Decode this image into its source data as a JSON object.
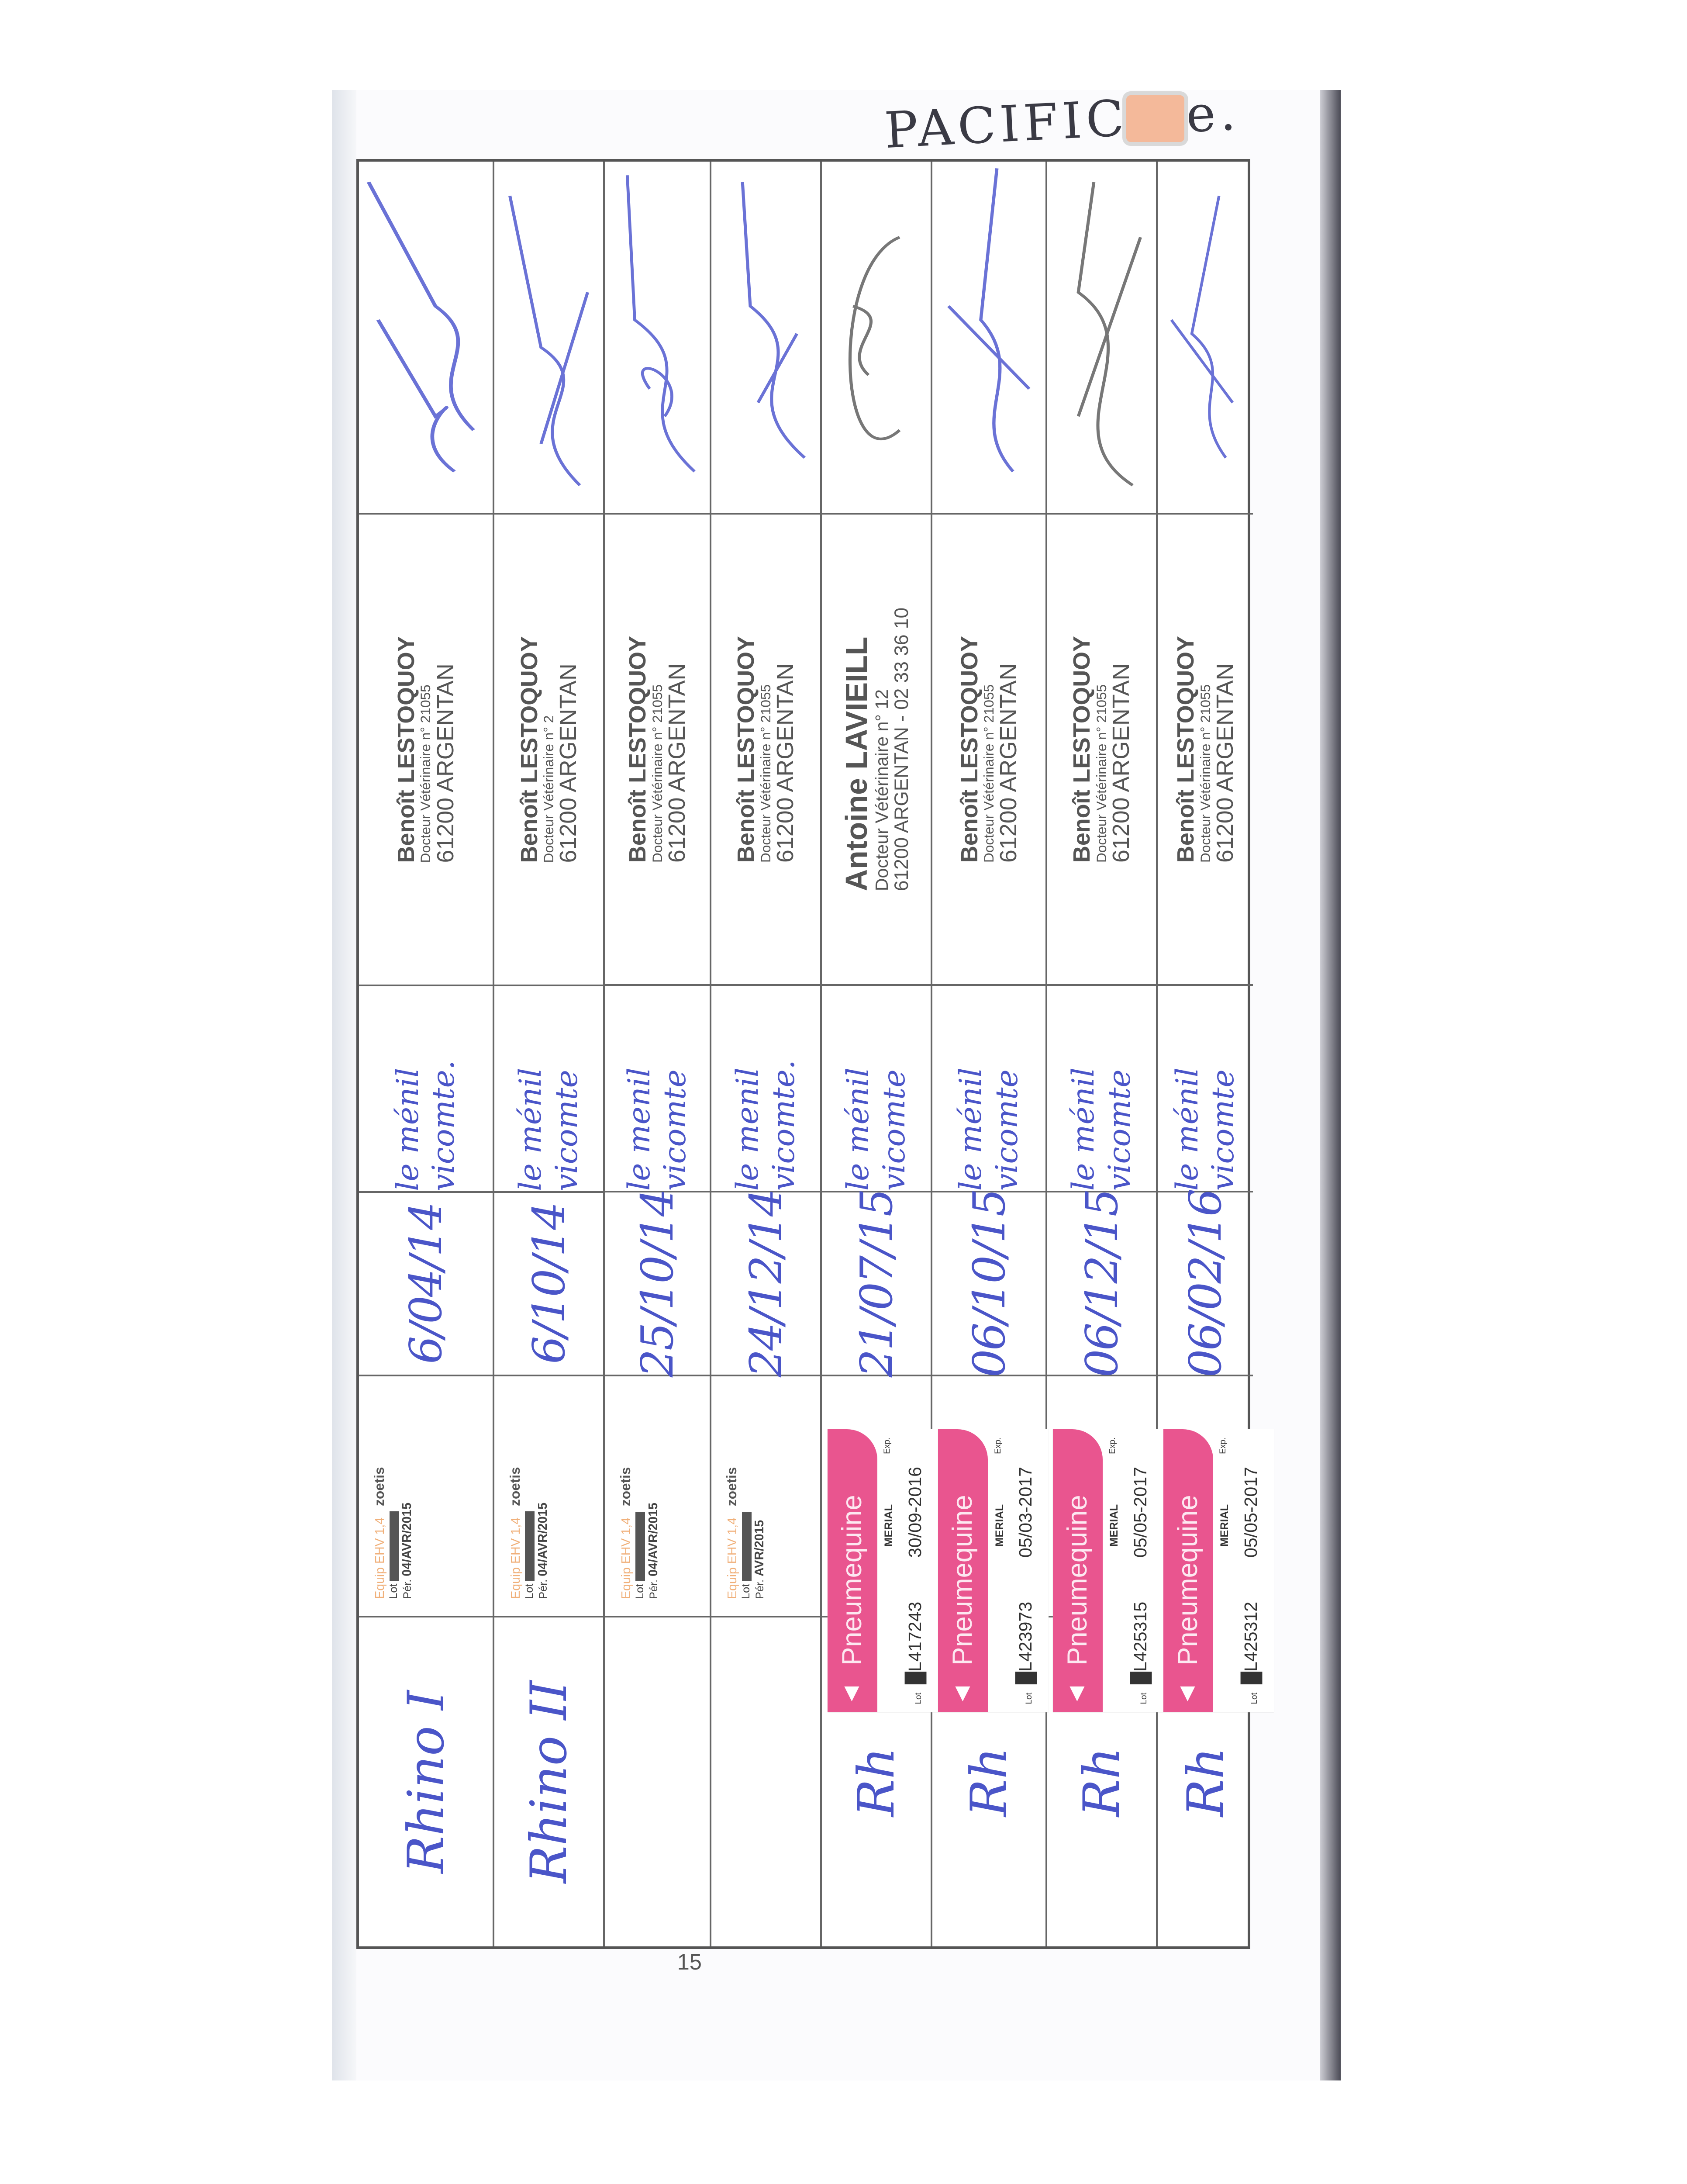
{
  "header_note": "PACIFIC...e.",
  "page_number": "15",
  "colors": {
    "ink_blue": "#4a55c8",
    "pneumequine_pink": "#e9558f",
    "stamp_gray": "#555555"
  },
  "rows": [
    {
      "disease": "Rhino I",
      "vaccine": {
        "type": "zoetis",
        "brand": "Equip EHV 1,4",
        "maker": "zoetis",
        "lot_label": "Lot",
        "per_label": "Pér.",
        "per": "04/AVR/2015"
      },
      "date": "6/04/14",
      "place": "le ménil vicomte.",
      "vet": {
        "name": "Benoît LESTOQUOY",
        "title": "Docteur Vétérinaire n° 21055",
        "city": "61200 ARGENTAN"
      }
    },
    {
      "disease": "Rhino II",
      "vaccine": {
        "type": "zoetis",
        "brand": "Equip EHV 1,4",
        "maker": "zoetis",
        "lot_label": "Lot",
        "per_label": "Pér.",
        "per": "04/AVR/2015"
      },
      "date": "6/10/14",
      "place": "le ménil vicomte",
      "vet": {
        "name": "Benoît LESTOQUOY",
        "title": "Docteur Vétérinaire n° 2",
        "city": "61200 ARGENTAN"
      }
    },
    {
      "disease": "",
      "vaccine": {
        "type": "zoetis",
        "brand": "Equip EHV 1,4",
        "maker": "zoetis",
        "lot_label": "Lot",
        "per_label": "Pér.",
        "per": "04/AVR/2015"
      },
      "date": "25/10/14",
      "place": "le menil vicomte",
      "vet": {
        "name": "Benoît LESTOQUOY",
        "title": "Docteur Vétérinaire n° 21055",
        "city": "61200 ARGENTAN"
      }
    },
    {
      "disease": "",
      "vaccine": {
        "type": "zoetis",
        "brand": "Equip EHV 1,4",
        "maker": "zoetis",
        "lot_label": "Lot",
        "per_label": "Pér.",
        "per": "AVR/2015"
      },
      "date": "24/12/14",
      "place": "le menil vicomte.",
      "vet": {
        "name": "Benoît LESTOQUOY",
        "title": "Docteur Vétérinaire n° 21055",
        "city": "61200 ARGENTAN"
      }
    },
    {
      "disease": "Rh",
      "vaccine": {
        "type": "pneumequine",
        "brand": "Pneumequine",
        "maker": "MERIAL",
        "lot_label": "Lot",
        "lot": "L417243",
        "exp_label": "Exp.",
        "exp": "30/09-2016"
      },
      "date": "21/07/15",
      "place": "le ménil vicomte",
      "vet": {
        "name": "Antoine LAVIEILL",
        "title": "Docteur Vétérinaire n° 12",
        "city": "61200 ARGENTAN - 02 33 36 10"
      }
    },
    {
      "disease": "Rh",
      "vaccine": {
        "type": "pneumequine",
        "brand": "Pneumequine",
        "maker": "MERIAL",
        "lot_label": "Lot",
        "lot": "L423973",
        "exp_label": "Exp.",
        "exp": "05/03-2017"
      },
      "date": "06/10/15",
      "place": "le ménil vicomte",
      "vet": {
        "name": "Benoît LESTOQUOY",
        "title": "Docteur Vétérinaire n° 21055",
        "city": "61200 ARGENTAN"
      }
    },
    {
      "disease": "Rh",
      "vaccine": {
        "type": "pneumequine",
        "brand": "Pneumequine",
        "maker": "MERIAL",
        "lot_label": "Lot",
        "lot": "L425315",
        "exp_label": "Exp.",
        "exp": "05/05-2017"
      },
      "date": "06/12/15",
      "place": "le ménil vicomte",
      "vet": {
        "name": "Benoît LESTOQUOY",
        "title": "Docteur Vétérinaire n° 21055",
        "city": "61200 ARGENTAN"
      }
    },
    {
      "disease": "Rh",
      "vaccine": {
        "type": "pneumequine",
        "brand": "Pneumequine",
        "maker": "MERIAL",
        "lot_label": "Lot",
        "lot": "L425312",
        "exp_label": "Exp.",
        "exp": "05/05-2017"
      },
      "date": "06/02/16",
      "place": "le ménil vicomte",
      "vet": {
        "name": "Benoît LESTOQUOY",
        "title": "Docteur Vétérinaire n° 21055",
        "city": "61200 ARGENTAN"
      }
    }
  ]
}
